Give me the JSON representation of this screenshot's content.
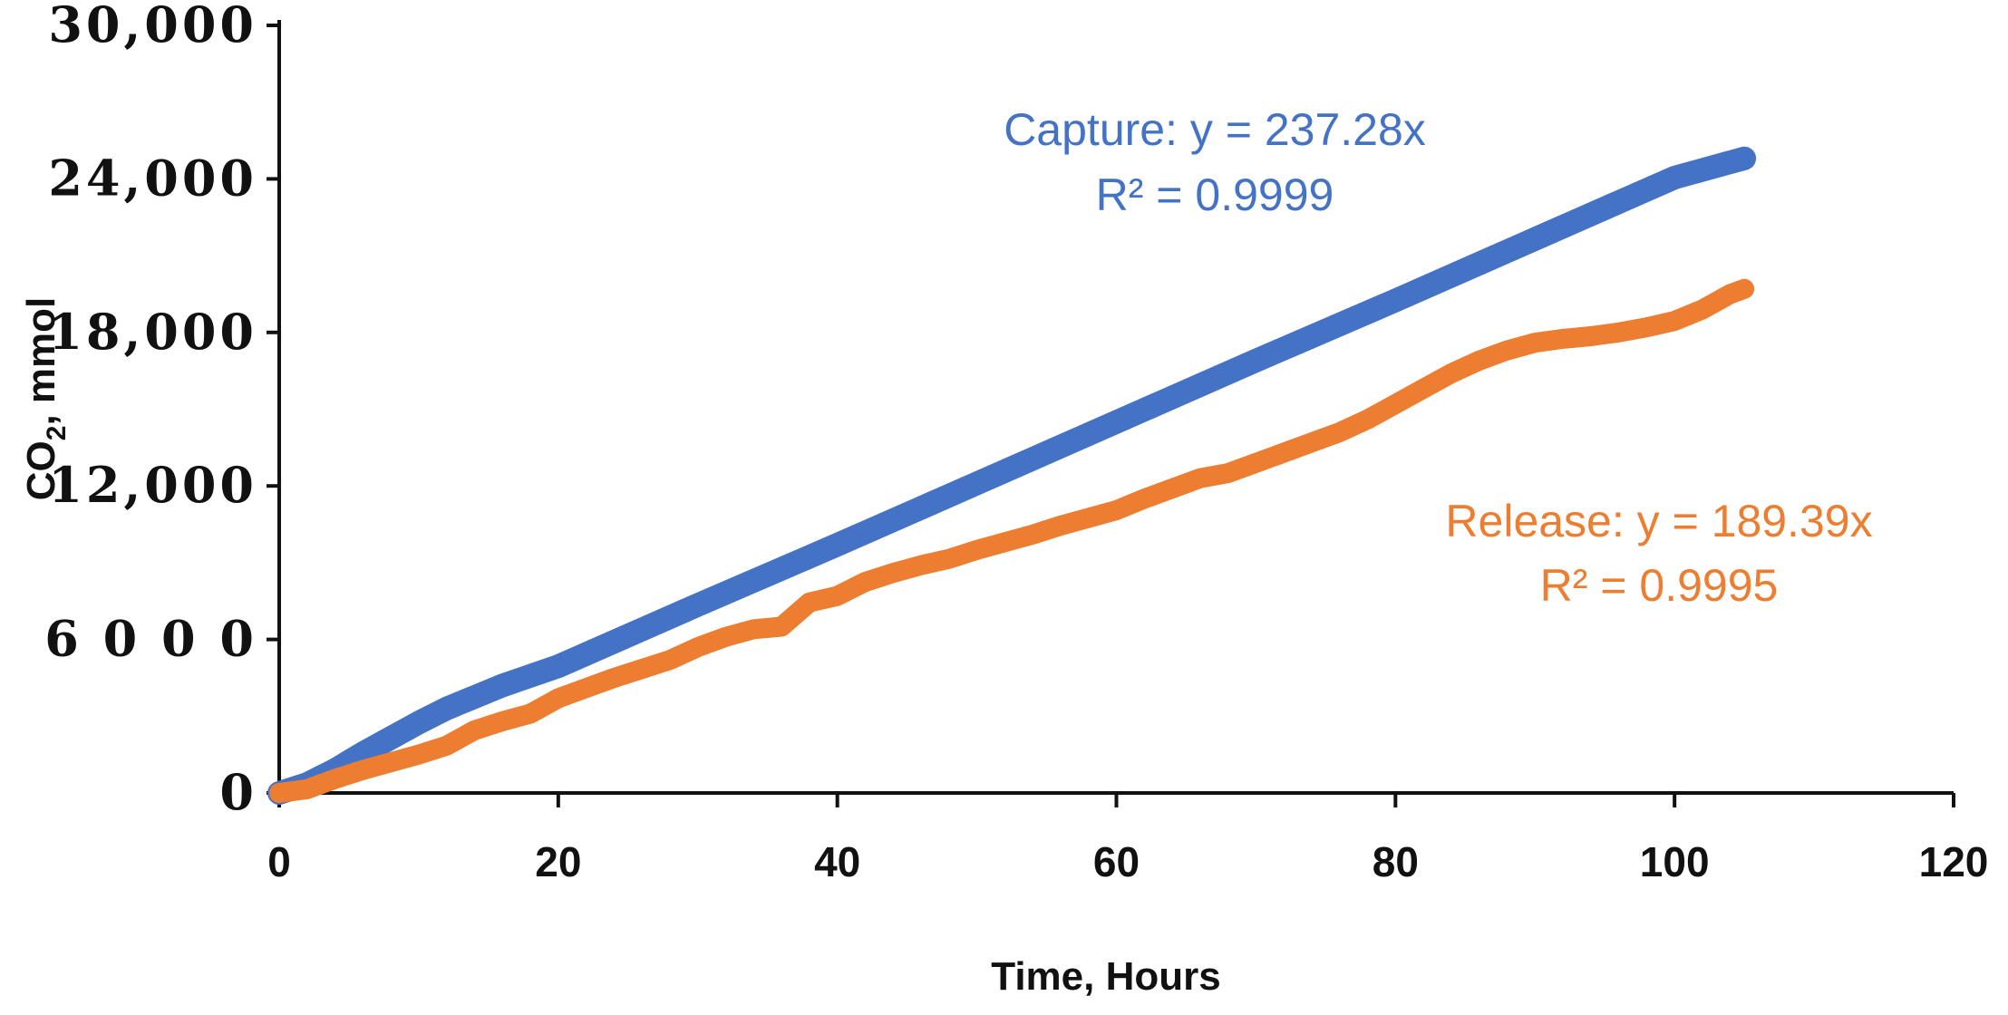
{
  "chart_data": {
    "type": "line",
    "title": "",
    "xlabel": "Time, Hours",
    "ylabel_main": "CO",
    "ylabel_sub": "2",
    "ylabel_tail": ", mmol",
    "xlim": [
      0,
      120
    ],
    "ylim": [
      0,
      30000
    ],
    "x_ticks": [
      0,
      20,
      40,
      60,
      80,
      100,
      120
    ],
    "x_tick_labels": [
      "0",
      "20",
      "40",
      "60",
      "80",
      "100",
      "120"
    ],
    "y_ticks": [
      0,
      6000,
      12000,
      18000,
      24000,
      30000
    ],
    "y_tick_labels": [
      "0",
      "6 0 0 0",
      "12,000",
      "18,000",
      "24,000",
      "30,000"
    ],
    "grid": false,
    "legend": "none",
    "series": [
      {
        "name": "Capture",
        "color": "#4472c4",
        "x": [
          0,
          2,
          4,
          6,
          8,
          10,
          12,
          14,
          16,
          20,
          30,
          40,
          50,
          60,
          70,
          80,
          90,
          100,
          105
        ],
        "y": [
          0,
          350,
          900,
          1550,
          2150,
          2750,
          3300,
          3750,
          4200,
          4950,
          7350,
          9700,
          12100,
          14500,
          16900,
          19250,
          21650,
          24050,
          24800
        ]
      },
      {
        "name": "Release",
        "color": "#ed7d31",
        "x": [
          0,
          2,
          4,
          6,
          8,
          10,
          12,
          14,
          16,
          18,
          20,
          22,
          24,
          26,
          28,
          30,
          32,
          34,
          36,
          38,
          40,
          42,
          44,
          46,
          48,
          50,
          52,
          54,
          56,
          58,
          60,
          62,
          64,
          66,
          68,
          70,
          72,
          74,
          76,
          78,
          80,
          82,
          84,
          86,
          88,
          90,
          92,
          94,
          96,
          98,
          100,
          102,
          104,
          105
        ],
        "y": [
          0,
          150,
          550,
          900,
          1200,
          1500,
          1850,
          2450,
          2800,
          3100,
          3700,
          4100,
          4500,
          4850,
          5200,
          5700,
          6100,
          6400,
          6500,
          7450,
          7700,
          8250,
          8600,
          8900,
          9150,
          9500,
          9800,
          10100,
          10450,
          10750,
          11050,
          11500,
          11900,
          12300,
          12500,
          12900,
          13300,
          13700,
          14100,
          14600,
          15200,
          15800,
          16400,
          16900,
          17300,
          17600,
          17750,
          17850,
          18000,
          18200,
          18450,
          18900,
          19500,
          19700
        ]
      }
    ],
    "annotations": [
      {
        "lines": [
          "Capture: y = 237.28x",
          "R² = 0.9999"
        ],
        "color": "#4472c4"
      },
      {
        "lines": [
          "Release: y = 189.39x",
          "R² = 0.9995"
        ],
        "color": "#ed7d31"
      }
    ]
  }
}
